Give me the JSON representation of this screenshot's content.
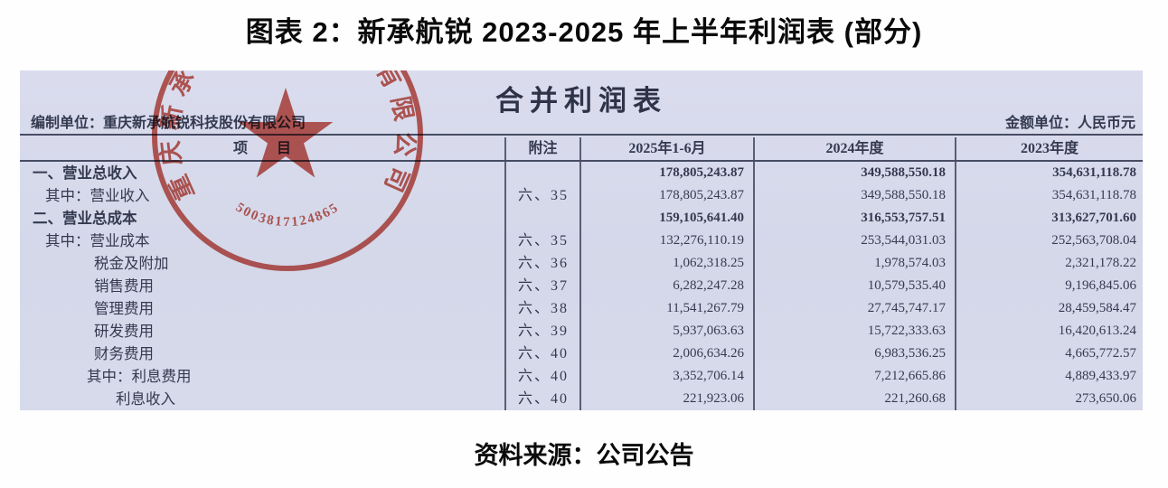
{
  "figure_title": "图表 2：新承航锐 2023-2025 年上半年利润表 (部分)",
  "source_note": "资料来源：公司公告",
  "statement": {
    "report_title": "合并利润表",
    "prepared_by": "编制单位：重庆新承航锐科技股份有限公司",
    "unit_note": "金额单位：人民币元",
    "columns": [
      "项　　目",
      "附注",
      "2025年1-6月",
      "2024年度",
      "2023年度"
    ],
    "rows": [
      {
        "item": "一、营业总收入",
        "note": "",
        "v2025": "178,805,243.87",
        "v2024": "349,588,550.18",
        "v2023": "354,631,118.78",
        "bold": true,
        "indent": 0
      },
      {
        "item": "其中：营业收入",
        "note": "六、35",
        "v2025": "178,805,243.87",
        "v2024": "349,588,550.18",
        "v2023": "354,631,118.78",
        "bold": false,
        "indent": 1
      },
      {
        "item": "二、营业总成本",
        "note": "",
        "v2025": "159,105,641.40",
        "v2024": "316,553,757.51",
        "v2023": "313,627,701.60",
        "bold": true,
        "indent": 0
      },
      {
        "item": "其中：营业成本",
        "note": "六、35",
        "v2025": "132,276,110.19",
        "v2024": "253,544,031.03",
        "v2023": "252,563,708.04",
        "bold": false,
        "indent": 1
      },
      {
        "item": "税金及附加",
        "note": "六、36",
        "v2025": "1,062,318.25",
        "v2024": "1,978,574.03",
        "v2023": "2,321,178.22",
        "bold": false,
        "indent": 2
      },
      {
        "item": "销售费用",
        "note": "六、37",
        "v2025": "6,282,247.28",
        "v2024": "10,579,535.40",
        "v2023": "9,196,845.06",
        "bold": false,
        "indent": 2
      },
      {
        "item": "管理费用",
        "note": "六、38",
        "v2025": "11,541,267.79",
        "v2024": "27,745,747.17",
        "v2023": "28,459,584.47",
        "bold": false,
        "indent": 2
      },
      {
        "item": "研发费用",
        "note": "六、39",
        "v2025": "5,937,063.63",
        "v2024": "15,722,333.63",
        "v2023": "16,420,613.24",
        "bold": false,
        "indent": 2
      },
      {
        "item": "财务费用",
        "note": "六、40",
        "v2025": "2,006,634.26",
        "v2024": "6,983,536.25",
        "v2023": "4,665,772.57",
        "bold": false,
        "indent": 2
      },
      {
        "item": "其中：利息费用",
        "note": "六、40",
        "v2025": "3,352,706.14",
        "v2024": "7,212,665.86",
        "v2023": "4,889,433.97",
        "bold": false,
        "indent": 3
      },
      {
        "item": "利息收入",
        "note": "六、40",
        "v2025": "221,923.06",
        "v2024": "221,260.68",
        "v2023": "273,650.06",
        "bold": false,
        "indent": 4
      }
    ]
  },
  "stamp": {
    "ring_text": "重庆新承航锐科技股份有限公司",
    "serial_number": "5003817124865",
    "color": "#bf3d31"
  }
}
